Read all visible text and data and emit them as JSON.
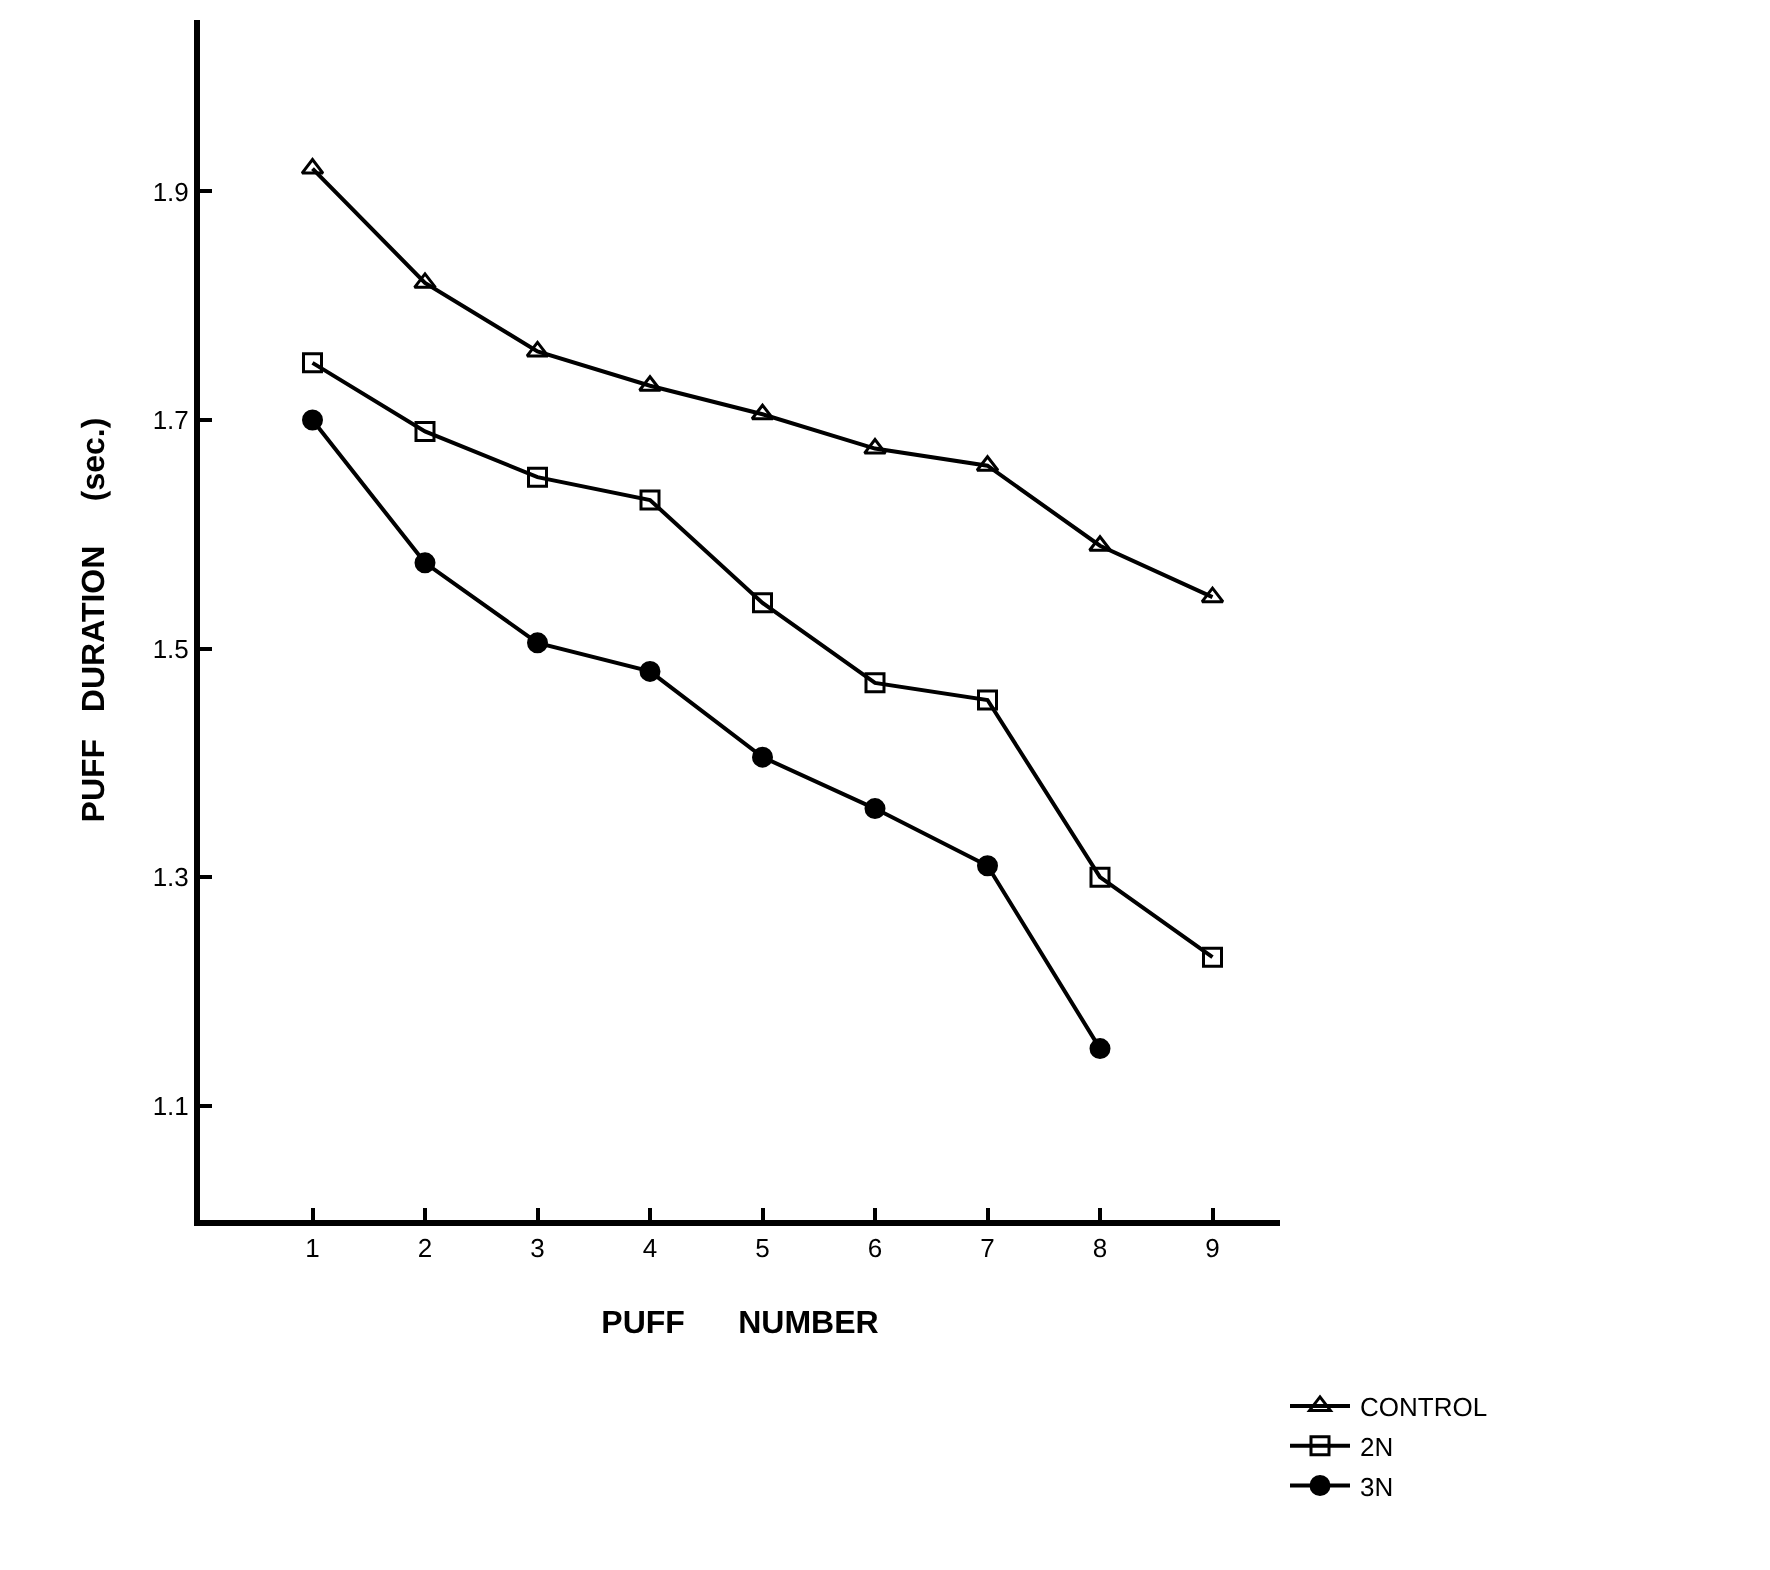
{
  "chart_data": {
    "type": "line",
    "xlabel": "PUFF      NUMBER",
    "ylabel": "PUFF   DURATION     (sec.)",
    "x": [
      1,
      2,
      3,
      4,
      5,
      6,
      7,
      8,
      9
    ],
    "xlim": [
      0,
      9.6
    ],
    "xticks": [
      1,
      2,
      3,
      4,
      5,
      6,
      7,
      8,
      9
    ],
    "ylim": [
      1.0,
      2.05
    ],
    "yticks": [
      1.1,
      1.3,
      1.5,
      1.7,
      1.9
    ],
    "legend": "bottom right",
    "line_style": "solid",
    "series": [
      {
        "name": "CONTROL",
        "color": "#000000",
        "marker": "triangle",
        "values": [
          1.92,
          1.82,
          1.76,
          1.73,
          1.705,
          1.675,
          1.66,
          1.59,
          1.545
        ]
      },
      {
        "name": "2N",
        "color": "#000000",
        "marker": "square",
        "values": [
          1.75,
          1.69,
          1.65,
          1.63,
          1.54,
          1.47,
          1.455,
          1.3,
          1.23
        ]
      },
      {
        "name": "3N",
        "color": "#000000",
        "marker": "circle",
        "values": [
          1.7,
          1.575,
          1.505,
          1.48,
          1.405,
          1.36,
          1.31,
          1.15,
          null
        ]
      }
    ]
  }
}
